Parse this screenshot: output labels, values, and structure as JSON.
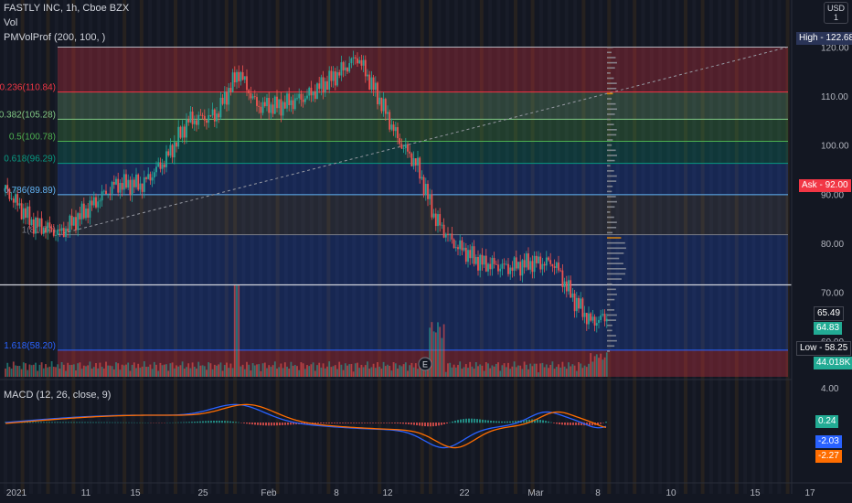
{
  "header": {
    "symbol_line": "FASTLY INC, 1h, Cboe BZX",
    "vol_label": "Vol",
    "indicator_label": "PMVolProf (200, 100, )",
    "macd_label": "MACD (12, 26, close, 9)"
  },
  "currency": {
    "line1": "USD",
    "line2": "1"
  },
  "price_scale": {
    "ticks": [
      "120.00",
      "110.00",
      "100.00",
      "90.00",
      "80.00",
      "70.00",
      "60.00"
    ],
    "macd_top_tick": "4.00"
  },
  "price_tags": {
    "high": {
      "label": "High",
      "value": "122.68",
      "color": "#2a3457"
    },
    "ask": {
      "label": "Ask",
      "value": "92.00",
      "color": "#f23645"
    },
    "last_1": {
      "value": "65.49",
      "color": "#131722"
    },
    "last_2": {
      "value": "64.83",
      "color": "#22ab94"
    },
    "low": {
      "label": "Low",
      "value": "58.25",
      "color": "#131722"
    },
    "volume": {
      "value": "44.018K",
      "color": "#22ab94"
    },
    "macd_hist": {
      "value": "0.24",
      "color": "#22ab94"
    },
    "macd_line": {
      "value": "-2.03",
      "color": "#2962ff"
    },
    "signal_line": {
      "value": "-2.27",
      "color": "#ff6d00"
    }
  },
  "time_axis": [
    "2021",
    "11",
    "15",
    "25",
    "Feb",
    "8",
    "12",
    "22",
    "Mar",
    "8",
    "10",
    "15",
    "17"
  ],
  "earnings_marker": "E",
  "fib_levels": [
    {
      "label": "0.236(110.84)",
      "price": 110.84,
      "color": "#f23645"
    },
    {
      "label": "0.382(105.28)",
      "price": 105.28,
      "color": "#81c784"
    },
    {
      "label": "0.5(100.78)",
      "price": 100.78,
      "color": "#4caf50"
    },
    {
      "label": "0.618(96.29)",
      "price": 96.29,
      "color": "#089981"
    },
    {
      "label": "0.786(89.89)",
      "price": 89.89,
      "color": "#64b5f6"
    },
    {
      "label": "1(81.74)",
      "price": 81.74,
      "color": "#787b86"
    },
    {
      "label": "1.618(58.20)",
      "price": 58.2,
      "color": "#2962ff"
    }
  ],
  "chart_data": {
    "type": "candlestick",
    "title": "FASTLY INC, 1h, Cboe BZX",
    "price_range": [
      55,
      124
    ],
    "high": 122.68,
    "low": 58.25,
    "ask": 92.0,
    "fib_top": 120.0,
    "fib_bottom": 55.0,
    "horizontal_level": 71.5,
    "approx_close_path": [
      {
        "t": 0,
        "p": 91
      },
      {
        "t": 30,
        "p": 84
      },
      {
        "t": 60,
        "p": 82
      },
      {
        "t": 90,
        "p": 87
      },
      {
        "t": 120,
        "p": 92
      },
      {
        "t": 150,
        "p": 92
      },
      {
        "t": 175,
        "p": 97
      },
      {
        "t": 200,
        "p": 105
      },
      {
        "t": 230,
        "p": 106
      },
      {
        "t": 255,
        "p": 115
      },
      {
        "t": 275,
        "p": 108
      },
      {
        "t": 300,
        "p": 108
      },
      {
        "t": 330,
        "p": 110
      },
      {
        "t": 360,
        "p": 114
      },
      {
        "t": 385,
        "p": 118
      },
      {
        "t": 410,
        "p": 109
      },
      {
        "t": 430,
        "p": 101
      },
      {
        "t": 450,
        "p": 96
      },
      {
        "t": 470,
        "p": 85
      },
      {
        "t": 490,
        "p": 80
      },
      {
        "t": 520,
        "p": 76
      },
      {
        "t": 550,
        "p": 75
      },
      {
        "t": 575,
        "p": 76
      },
      {
        "t": 600,
        "p": 76
      },
      {
        "t": 620,
        "p": 69
      },
      {
        "t": 640,
        "p": 64
      },
      {
        "t": 660,
        "p": 65
      }
    ],
    "macd": {
      "macd_line": -2.03,
      "signal_line": -2.27,
      "histogram": 0.24,
      "range": [
        -4,
        4
      ]
    }
  }
}
